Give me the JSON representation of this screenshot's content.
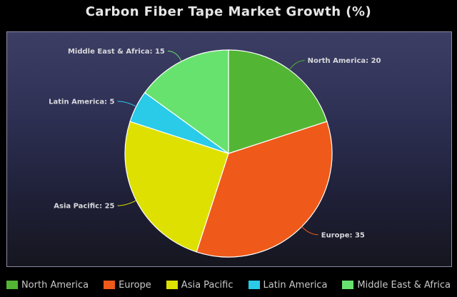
{
  "chart_data": {
    "type": "pie",
    "title": "Carbon Fiber Tape Market Growth (%)",
    "categories": [
      "North America",
      "Europe",
      "Asia Pacific",
      "Latin America",
      "Middle East & Africa"
    ],
    "values": [
      20,
      35,
      25,
      5,
      15
    ],
    "colors": [
      "#52b634",
      "#ef5a1a",
      "#dde000",
      "#29cbe8",
      "#67e26f"
    ],
    "slice_labels": [
      "North America: 20",
      "Europe: 35",
      "Asia Pacific: 25",
      "Latin America: 5",
      "Middle East & Africa: 15"
    ],
    "start_angle_deg": 0,
    "direction": "clockwise",
    "legend": {
      "position": "bottom",
      "entries": [
        "North America",
        "Europe",
        "Asia Pacific",
        "Latin America",
        "Middle East & Africa"
      ]
    },
    "background": {
      "plot_top": "#3c3e64",
      "plot_bottom": "#16161f",
      "page": "#000000"
    },
    "grid": false
  }
}
